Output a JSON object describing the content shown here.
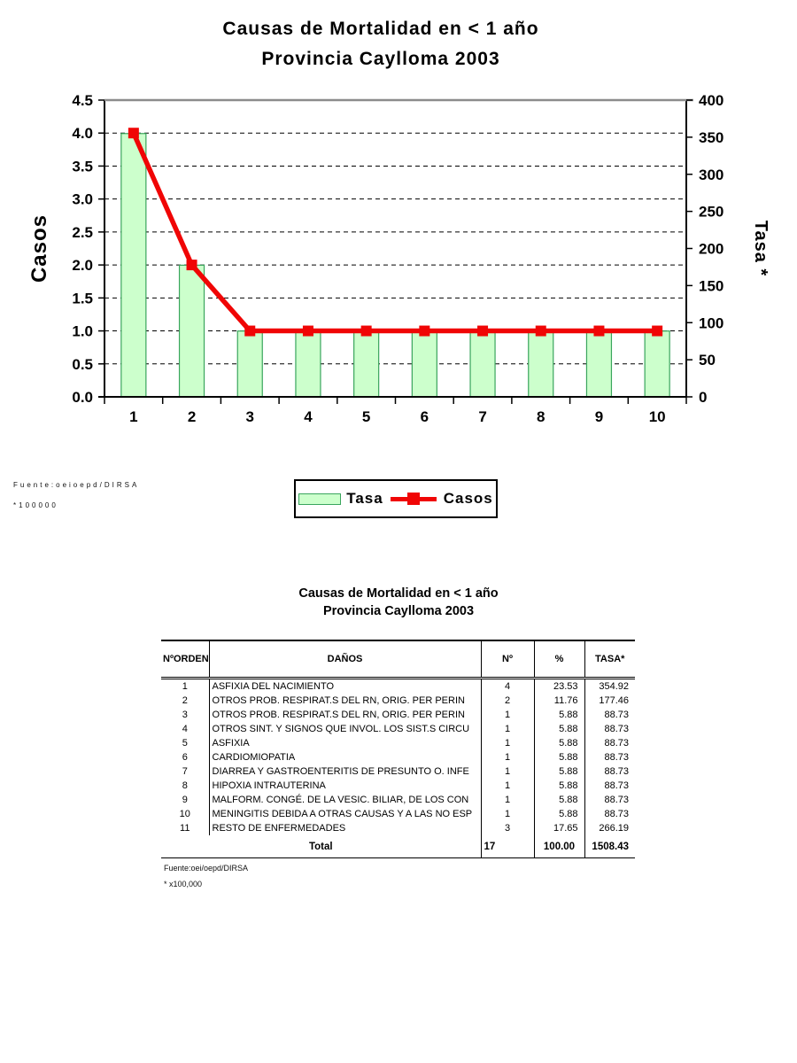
{
  "chart": {
    "title_line1": "Causas de Mortalidad en < 1 año",
    "title_line2": "Provincia Caylloma 2003",
    "source_line1": "Fuente:oeioepd/DIRSA",
    "source_line2": "*100000",
    "legend": {
      "tasa_label": "Tasa",
      "casos_label": "Casos"
    },
    "colors": {
      "bar_fill": "#ccffcc",
      "bar_border": "#3aa55d",
      "line": "#f00505",
      "grid": "#000000",
      "axis": "#000000",
      "plot_top_border": "#8c8c8c"
    }
  },
  "chart_data": {
    "type": "bar+line",
    "title": "Causas de Mortalidad en < 1 año — Provincia Caylloma 2003",
    "categories": [
      "1",
      "2",
      "3",
      "4",
      "5",
      "6",
      "7",
      "8",
      "9",
      "10"
    ],
    "series": [
      {
        "name": "Tasa",
        "type": "bar",
        "axis": "right",
        "values": [
          354.92,
          177.46,
          88.73,
          88.73,
          88.73,
          88.73,
          88.73,
          88.73,
          88.73,
          88.73
        ]
      },
      {
        "name": "Casos",
        "type": "line",
        "axis": "left",
        "values": [
          4,
          2,
          1,
          1,
          1,
          1,
          1,
          1,
          1,
          1
        ]
      }
    ],
    "left_axis": {
      "label": "Casos",
      "min": 0,
      "max": 4.5,
      "step": 0.5
    },
    "right_axis": {
      "label": "Tasa *",
      "min": 0,
      "max": 400,
      "step": 50
    },
    "grid": "dashed-horizontal",
    "legend_position": "bottom"
  },
  "table": {
    "title_line1": "Causas de Mortalidad en < 1 año",
    "title_line2": "Provincia Caylloma 2003",
    "headers": [
      "NºORDEN",
      "DAÑOS",
      "Nº",
      "%",
      "TASA*"
    ],
    "rows": [
      [
        "1",
        "ASFIXIA DEL NACIMIENTO",
        "4",
        "23.53",
        "354.92"
      ],
      [
        "2",
        "OTROS PROB. RESPIRAT.S DEL RN, ORIG. PER PERIN",
        "2",
        "11.76",
        "177.46"
      ],
      [
        "3",
        "OTROS PROB. RESPIRAT.S DEL RN, ORIG. PER PERIN",
        "1",
        "5.88",
        "88.73"
      ],
      [
        "4",
        "OTROS SINT. Y SIGNOS QUE INVOL. LOS SIST.S CIRCU",
        "1",
        "5.88",
        "88.73"
      ],
      [
        "5",
        "ASFIXIA",
        "1",
        "5.88",
        "88.73"
      ],
      [
        "6",
        "CARDIOMIOPATIA",
        "1",
        "5.88",
        "88.73"
      ],
      [
        "7",
        "DIARREA Y GASTROENTERITIS DE PRESUNTO O. INFE",
        "1",
        "5.88",
        "88.73"
      ],
      [
        "8",
        "HIPOXIA INTRAUTERINA",
        "1",
        "5.88",
        "88.73"
      ],
      [
        "9",
        "MALFORM. CONGÉ. DE LA VESIC. BILIAR, DE LOS CON",
        "1",
        "5.88",
        "88.73"
      ],
      [
        "10",
        "MENINGITIS DEBIDA A OTRAS CAUSAS Y A LAS NO ESP",
        "1",
        "5.88",
        "88.73"
      ],
      [
        "11",
        "RESTO DE ENFERMEDADES",
        "3",
        "17.65",
        "266.19"
      ]
    ],
    "total": {
      "label": "Total",
      "n": "17",
      "pct": "100.00",
      "tasa": "1508.43"
    },
    "source_line1": "Fuente:oei/oepd/DIRSA",
    "source_line2": "* x100,000"
  }
}
